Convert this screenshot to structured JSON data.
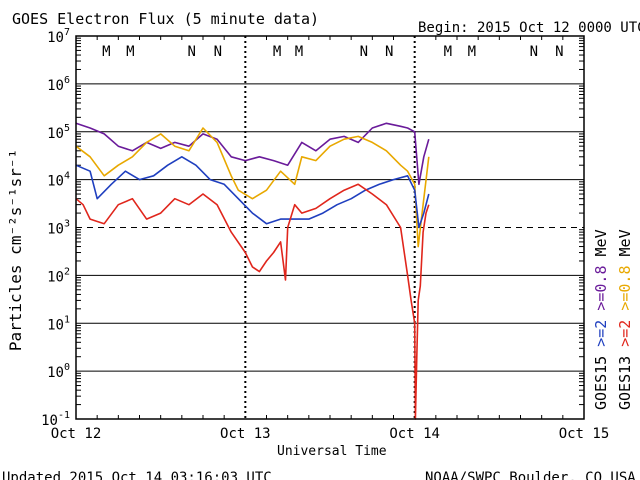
{
  "chart_data": {
    "type": "line",
    "title": "GOES Electron Flux (5 minute data)",
    "begin_label": "Begin: 2015 Oct 12 0000 UTC",
    "xlabel": "Universal Time",
    "ylabel": "Particles cm⁻²s⁻¹sr⁻¹",
    "y_scale": "log",
    "ylim": [
      0.1,
      10000000
    ],
    "y_ticks": [
      {
        "base": "10",
        "exp": "7"
      },
      {
        "base": "10",
        "exp": "6"
      },
      {
        "base": "10",
        "exp": "5"
      },
      {
        "base": "10",
        "exp": "4"
      },
      {
        "base": "10",
        "exp": "3"
      },
      {
        "base": "10",
        "exp": "2"
      },
      {
        "base": "10",
        "exp": "1"
      },
      {
        "base": "10",
        "exp": "0"
      },
      {
        "base": "10",
        "exp": "-1"
      }
    ],
    "xlim": [
      0,
      72
    ],
    "x_ticks": [
      {
        "label": "Oct 12",
        "value": 0
      },
      {
        "label": "Oct 13",
        "value": 24
      },
      {
        "label": "Oct 14",
        "value": 48
      },
      {
        "label": "Oct 15",
        "value": 72
      }
    ],
    "threshold": {
      "value": 1000,
      "style": "dashed"
    },
    "markers_top": [
      {
        "label": "M",
        "hour": 4.3,
        "satellite": "GOES13"
      },
      {
        "label": "M",
        "hour": 7.7,
        "satellite": "GOES15"
      },
      {
        "label": "N",
        "hour": 16.4,
        "satellite": "GOES13"
      },
      {
        "label": "N",
        "hour": 20.1,
        "satellite": "GOES15"
      },
      {
        "label": "M",
        "hour": 28.5,
        "satellite": "GOES13"
      },
      {
        "label": "M",
        "hour": 31.6,
        "satellite": "GOES15"
      },
      {
        "label": "N",
        "hour": 40.8,
        "satellite": "GOES13"
      },
      {
        "label": "N",
        "hour": 44.4,
        "satellite": "GOES15"
      },
      {
        "label": "M",
        "hour": 52.7,
        "satellite": "GOES13"
      },
      {
        "label": "M",
        "hour": 56.1,
        "satellite": "GOES15"
      },
      {
        "label": "N",
        "hour": 64.9,
        "satellite": "GOES13"
      },
      {
        "label": "N",
        "hour": 68.5,
        "satellite": "GOES15"
      }
    ],
    "legend": {
      "placement": "right",
      "column1": [
        {
          "text": "GOES15",
          "color": "#000000"
        },
        {
          "text": ">=2",
          "color": "#1f3fbf"
        },
        {
          "text": ">=0.8",
          "color": "#6a1b9a"
        },
        {
          "text": "MeV",
          "color": "#000000"
        }
      ],
      "column2": [
        {
          "text": "GOES13",
          "color": "#000000"
        },
        {
          "text": ">=2",
          "color": "#e0261c"
        },
        {
          "text": ">=0.8",
          "color": "#e8a800"
        },
        {
          "text": "MeV",
          "color": "#000000"
        }
      ]
    },
    "series": [
      {
        "name": "GOES15 >=0.8 MeV",
        "color": "#6a1b9a",
        "x": [
          0,
          2,
          4,
          6,
          8,
          10,
          12,
          14,
          16,
          18,
          20,
          22,
          24,
          26,
          28,
          30,
          32,
          34,
          36,
          38,
          40,
          42,
          44,
          46,
          47,
          48,
          48.6,
          49.3,
          50
        ],
        "y": [
          150000,
          120000,
          90000,
          50000,
          40000,
          60000,
          45000,
          60000,
          50000,
          90000,
          70000,
          30000,
          25000,
          30000,
          25000,
          20000,
          60000,
          40000,
          70000,
          80000,
          60000,
          120000,
          150000,
          130000,
          120000,
          100000,
          8000,
          30000,
          70000
        ]
      },
      {
        "name": "GOES13 >=0.8 MeV",
        "color": "#e8a800",
        "x": [
          0,
          2,
          4,
          6,
          8,
          10,
          12,
          14,
          16,
          18,
          20,
          22,
          23,
          25,
          27,
          29,
          31,
          32,
          34,
          36,
          38,
          40,
          42,
          44,
          46,
          47,
          48,
          48.5,
          49.2,
          50
        ],
        "y": [
          50000,
          30000,
          12000,
          20000,
          30000,
          60000,
          90000,
          50000,
          40000,
          120000,
          60000,
          12000,
          6000,
          4000,
          6000,
          15000,
          8000,
          30000,
          25000,
          50000,
          70000,
          80000,
          60000,
          40000,
          20000,
          15000,
          8000,
          400,
          3000,
          30000
        ]
      },
      {
        "name": "GOES15 >=2 MeV",
        "color": "#1f3fbf",
        "x": [
          0,
          2,
          3,
          5,
          7,
          9,
          11,
          13,
          15,
          17,
          19,
          21,
          23,
          25,
          27,
          29,
          31,
          33,
          35,
          37,
          39,
          41,
          43,
          45,
          47,
          48,
          48.6,
          49.3,
          50
        ],
        "y": [
          20000,
          15000,
          4000,
          8000,
          15000,
          10000,
          12000,
          20000,
          30000,
          20000,
          10000,
          8000,
          4000,
          2000,
          1200,
          1500,
          1500,
          1500,
          2000,
          3000,
          4000,
          6000,
          8000,
          10000,
          12000,
          6000,
          1000,
          2000,
          5000
        ]
      },
      {
        "name": "GOES13 >=2 MeV",
        "color": "#e0261c",
        "x": [
          0,
          1,
          2,
          4,
          6,
          8,
          10,
          12,
          14,
          16,
          18,
          20,
          22,
          24,
          25,
          26,
          27,
          28,
          29,
          29.7,
          30,
          31,
          32,
          34,
          36,
          38,
          40,
          42,
          44,
          46,
          47,
          47.5,
          48,
          48.1,
          48.3,
          48.5,
          48.8,
          49.2,
          49.6,
          50
        ],
        "y": [
          4000,
          3000,
          1500,
          1200,
          3000,
          4000,
          1500,
          2000,
          4000,
          3000,
          5000,
          3000,
          800,
          300,
          150,
          120,
          200,
          300,
          500,
          80,
          1000,
          3000,
          2000,
          2500,
          4000,
          6000,
          8000,
          5000,
          3000,
          1000,
          100,
          30,
          10,
          0.1,
          2,
          30,
          60,
          800,
          2000,
          3000
        ]
      }
    ]
  },
  "footer": {
    "updated": "Updated 2015 Oct 14 03:16:03 UTC",
    "credit": "NOAA/SWPC Boulder, CO USA"
  }
}
